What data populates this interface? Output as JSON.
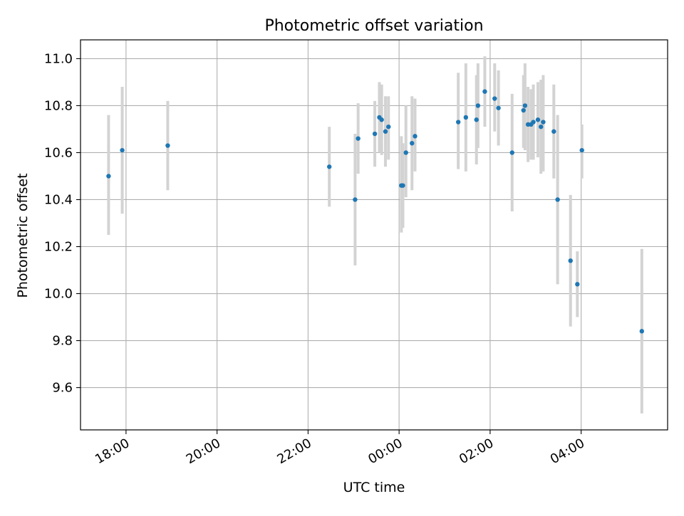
{
  "chart_data": {
    "type": "scatter",
    "title": "Photometric offset variation",
    "xlabel": "UTC time",
    "ylabel": "Photometric offset",
    "x_axis": {
      "kind": "time",
      "unit": "hours since 00:00 UTC",
      "range": [
        -7.0,
        5.9
      ],
      "ticks": [
        {
          "value": -6,
          "label": "18:00"
        },
        {
          "value": -4,
          "label": "20:00"
        },
        {
          "value": -2,
          "label": "22:00"
        },
        {
          "value": 0,
          "label": "00:00"
        },
        {
          "value": 2,
          "label": "02:00"
        },
        {
          "value": 4,
          "label": "04:00"
        }
      ]
    },
    "y_axis": {
      "range": [
        9.42,
        11.08
      ],
      "ticks": [
        {
          "value": 9.6,
          "label": "9.6"
        },
        {
          "value": 9.8,
          "label": "9.8"
        },
        {
          "value": 10.0,
          "label": "10.0"
        },
        {
          "value": 10.2,
          "label": "10.2"
        },
        {
          "value": 10.4,
          "label": "10.4"
        },
        {
          "value": 10.6,
          "label": "10.6"
        },
        {
          "value": 10.8,
          "label": "10.8"
        },
        {
          "value": 11.0,
          "label": "11.0"
        }
      ]
    },
    "grid": true,
    "colors": {
      "point": "#1f77b4",
      "errorbar": "#d3d3d3",
      "grid": "#b0b0b0"
    },
    "points": [
      {
        "t": "17:37",
        "y": 10.5,
        "lo": 10.25,
        "hi": 10.76
      },
      {
        "t": "17:55",
        "y": 10.61,
        "lo": 10.34,
        "hi": 10.88
      },
      {
        "t": "18:55",
        "y": 10.63,
        "lo": 10.44,
        "hi": 10.82
      },
      {
        "t": "22:28",
        "y": 10.54,
        "lo": 10.37,
        "hi": 10.71
      },
      {
        "t": "23:02",
        "y": 10.4,
        "lo": 10.12,
        "hi": 10.68
      },
      {
        "t": "23:06",
        "y": 10.66,
        "lo": 10.51,
        "hi": 10.81
      },
      {
        "t": "23:28",
        "y": 10.68,
        "lo": 10.54,
        "hi": 10.82
      },
      {
        "t": "23:34",
        "y": 10.75,
        "lo": 10.6,
        "hi": 10.9
      },
      {
        "t": "23:37",
        "y": 10.74,
        "lo": 10.59,
        "hi": 10.89
      },
      {
        "t": "23:42",
        "y": 10.69,
        "lo": 10.54,
        "hi": 10.84
      },
      {
        "t": "23:46",
        "y": 10.71,
        "lo": 10.57,
        "hi": 10.84
      },
      {
        "t": "00:03",
        "y": 10.46,
        "lo": 10.26,
        "hi": 10.67
      },
      {
        "t": "00:05",
        "y": 10.46,
        "lo": 10.28,
        "hi": 10.64
      },
      {
        "t": "00:09",
        "y": 10.6,
        "lo": 10.41,
        "hi": 10.8
      },
      {
        "t": "00:17",
        "y": 10.64,
        "lo": 10.44,
        "hi": 10.84
      },
      {
        "t": "00:21",
        "y": 10.67,
        "lo": 10.52,
        "hi": 10.83
      },
      {
        "t": "01:18",
        "y": 10.73,
        "lo": 10.53,
        "hi": 10.94
      },
      {
        "t": "01:28",
        "y": 10.75,
        "lo": 10.52,
        "hi": 10.98
      },
      {
        "t": "01:42",
        "y": 10.74,
        "lo": 10.55,
        "hi": 10.93
      },
      {
        "t": "01:44",
        "y": 10.8,
        "lo": 10.62,
        "hi": 10.98
      },
      {
        "t": "01:53",
        "y": 10.86,
        "lo": 10.71,
        "hi": 11.01
      },
      {
        "t": "02:06",
        "y": 10.83,
        "lo": 10.69,
        "hi": 10.98
      },
      {
        "t": "02:11",
        "y": 10.79,
        "lo": 10.63,
        "hi": 10.95
      },
      {
        "t": "02:29",
        "y": 10.6,
        "lo": 10.35,
        "hi": 10.85
      },
      {
        "t": "02:44",
        "y": 10.78,
        "lo": 10.62,
        "hi": 10.93
      },
      {
        "t": "02:46",
        "y": 10.8,
        "lo": 10.61,
        "hi": 10.98
      },
      {
        "t": "02:50",
        "y": 10.72,
        "lo": 10.56,
        "hi": 10.88
      },
      {
        "t": "02:54",
        "y": 10.72,
        "lo": 10.57,
        "hi": 10.87
      },
      {
        "t": "02:57",
        "y": 10.73,
        "lo": 10.57,
        "hi": 10.89
      },
      {
        "t": "03:03",
        "y": 10.74,
        "lo": 10.58,
        "hi": 10.9
      },
      {
        "t": "03:07",
        "y": 10.71,
        "lo": 10.51,
        "hi": 10.91
      },
      {
        "t": "03:10",
        "y": 10.73,
        "lo": 10.52,
        "hi": 10.93
      },
      {
        "t": "03:24",
        "y": 10.69,
        "lo": 10.49,
        "hi": 10.89
      },
      {
        "t": "03:29",
        "y": 10.4,
        "lo": 10.04,
        "hi": 10.76
      },
      {
        "t": "03:46",
        "y": 10.14,
        "lo": 9.86,
        "hi": 10.42
      },
      {
        "t": "03:55",
        "y": 10.04,
        "lo": 9.9,
        "hi": 10.18
      },
      {
        "t": "04:01",
        "y": 10.61,
        "lo": 10.49,
        "hi": 10.72
      },
      {
        "t": "05:20",
        "y": 9.84,
        "lo": 9.49,
        "hi": 10.19
      }
    ]
  }
}
